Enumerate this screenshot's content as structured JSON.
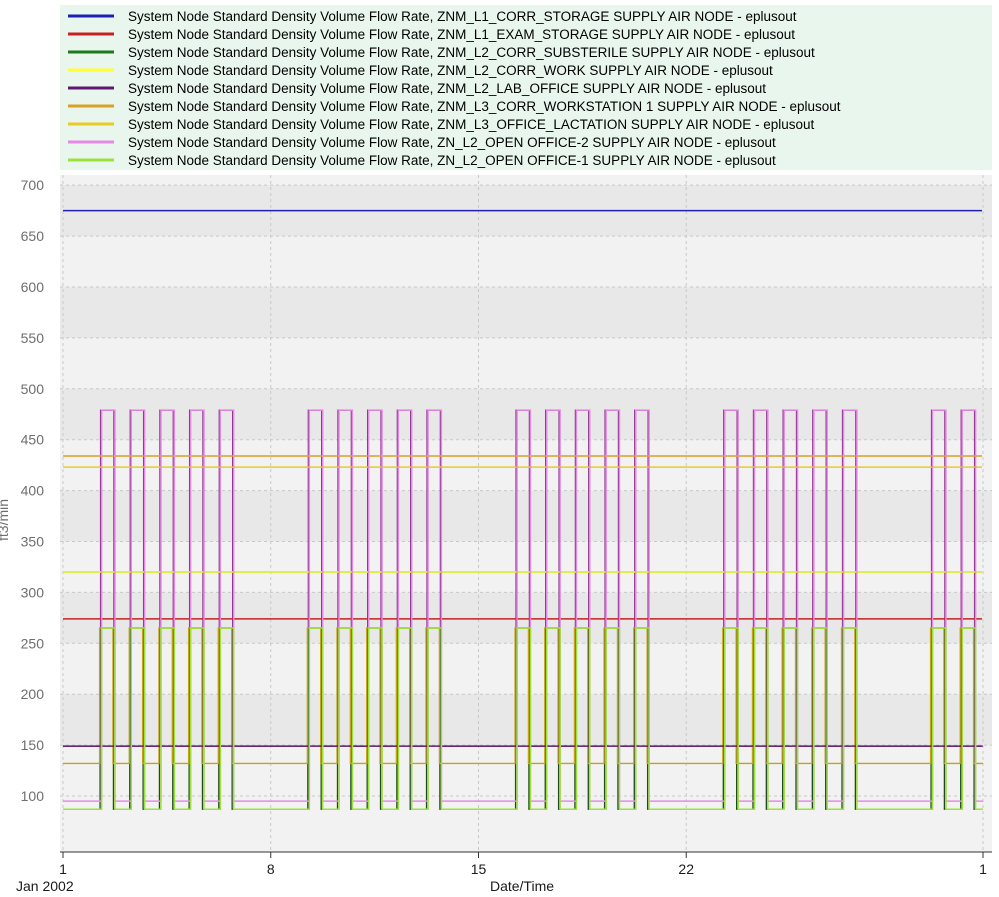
{
  "chart_data": {
    "type": "line",
    "ylabel": "ft3/min",
    "xlabel": "Date/Time",
    "x_tick_labels": [
      "1",
      "8",
      "15",
      "22",
      "1"
    ],
    "x_tick_days": [
      1,
      8,
      15,
      22,
      32
    ],
    "x_sublabel": "Jan 2002",
    "xlim": [
      1,
      32
    ],
    "ylim": [
      45,
      710
    ],
    "y_ticks": [
      100,
      150,
      200,
      250,
      300,
      350,
      400,
      450,
      500,
      550,
      600,
      650,
      700
    ],
    "grid": true,
    "legend_position": "top",
    "colors": {
      "legend_bg": "#e9f6ee",
      "band_light": "#f1f2f1",
      "band_dark": "#e7e8e7",
      "grid": "#c8c8c8"
    },
    "series": [
      {
        "name": "System Node Standard Density Volume Flow Rate, ZNM_L1_CORR_STORAGE SUPPLY AIR NODE - eplusout",
        "color": "#1f1fb4",
        "kind": "const",
        "value": 675
      },
      {
        "name": "System Node Standard Density Volume Flow Rate, ZNM_L1_EXAM_STORAGE SUPPLY AIR NODE - eplusout",
        "color": "#c82020",
        "kind": "const",
        "value": 274
      },
      {
        "name": "System Node Standard Density Volume Flow Rate, ZNM_L2_CORR_SUBSTERILE SUPPLY AIR NODE - eplusout",
        "color": "#1c7a1c",
        "kind": "const",
        "value": 320
      },
      {
        "name": "System Node Standard Density Volume Flow Rate, ZNM_L2_CORR_WORK SUPPLY AIR NODE - eplusout",
        "color": "#ffff33",
        "kind": "const",
        "value": 320
      },
      {
        "name": "System Node Standard Density Volume Flow Rate, ZNM_L2_LAB_OFFICE SUPPLY AIR NODE - eplusout",
        "color": "#5c1a6e",
        "kind": "const",
        "value": 149
      },
      {
        "name": "System Node Standard Density Volume Flow Rate, ZNM_L3_CORR_WORKSTATION 1 SUPPLY AIR NODE - eplusout",
        "color": "#d9a023",
        "kind": "const",
        "value": 434
      },
      {
        "name": "System Node Standard Density Volume Flow Rate, ZNM_L3_OFFICE_LACTATION SUPPLY AIR NODE - eplusout",
        "color": "#e6cc22",
        "kind": "const",
        "value": 423
      },
      {
        "name": "System Node Standard Density Volume Flow Rate, ZN_L2_OPEN OFFICE-2 SUPPLY AIR NODE - eplusout",
        "color": "#e58ae5",
        "kind": "pulse",
        "high": 479,
        "low": 95
      },
      {
        "name": "System Node Standard Density Volume Flow Rate, ZN_L2_OPEN OFFICE-1 SUPPLY AIR NODE - eplusout",
        "color": "#9de23a",
        "kind": "pulse",
        "high": 265,
        "low": 87
      }
    ],
    "occupied_days": [
      2,
      3,
      4,
      5,
      6,
      9,
      10,
      11,
      12,
      13,
      16,
      17,
      18,
      19,
      20,
      23,
      24,
      25,
      26,
      27,
      30,
      31
    ],
    "overlay_series": [
      {
        "color": "#8b2a8b",
        "high": 479,
        "low": 149,
        "note": ""
      },
      {
        "color": "#1e4a1e",
        "high": 265,
        "low": 87,
        "note": ""
      },
      {
        "color": "#c8a020",
        "high": 265,
        "low": 132,
        "note": ""
      }
    ]
  }
}
